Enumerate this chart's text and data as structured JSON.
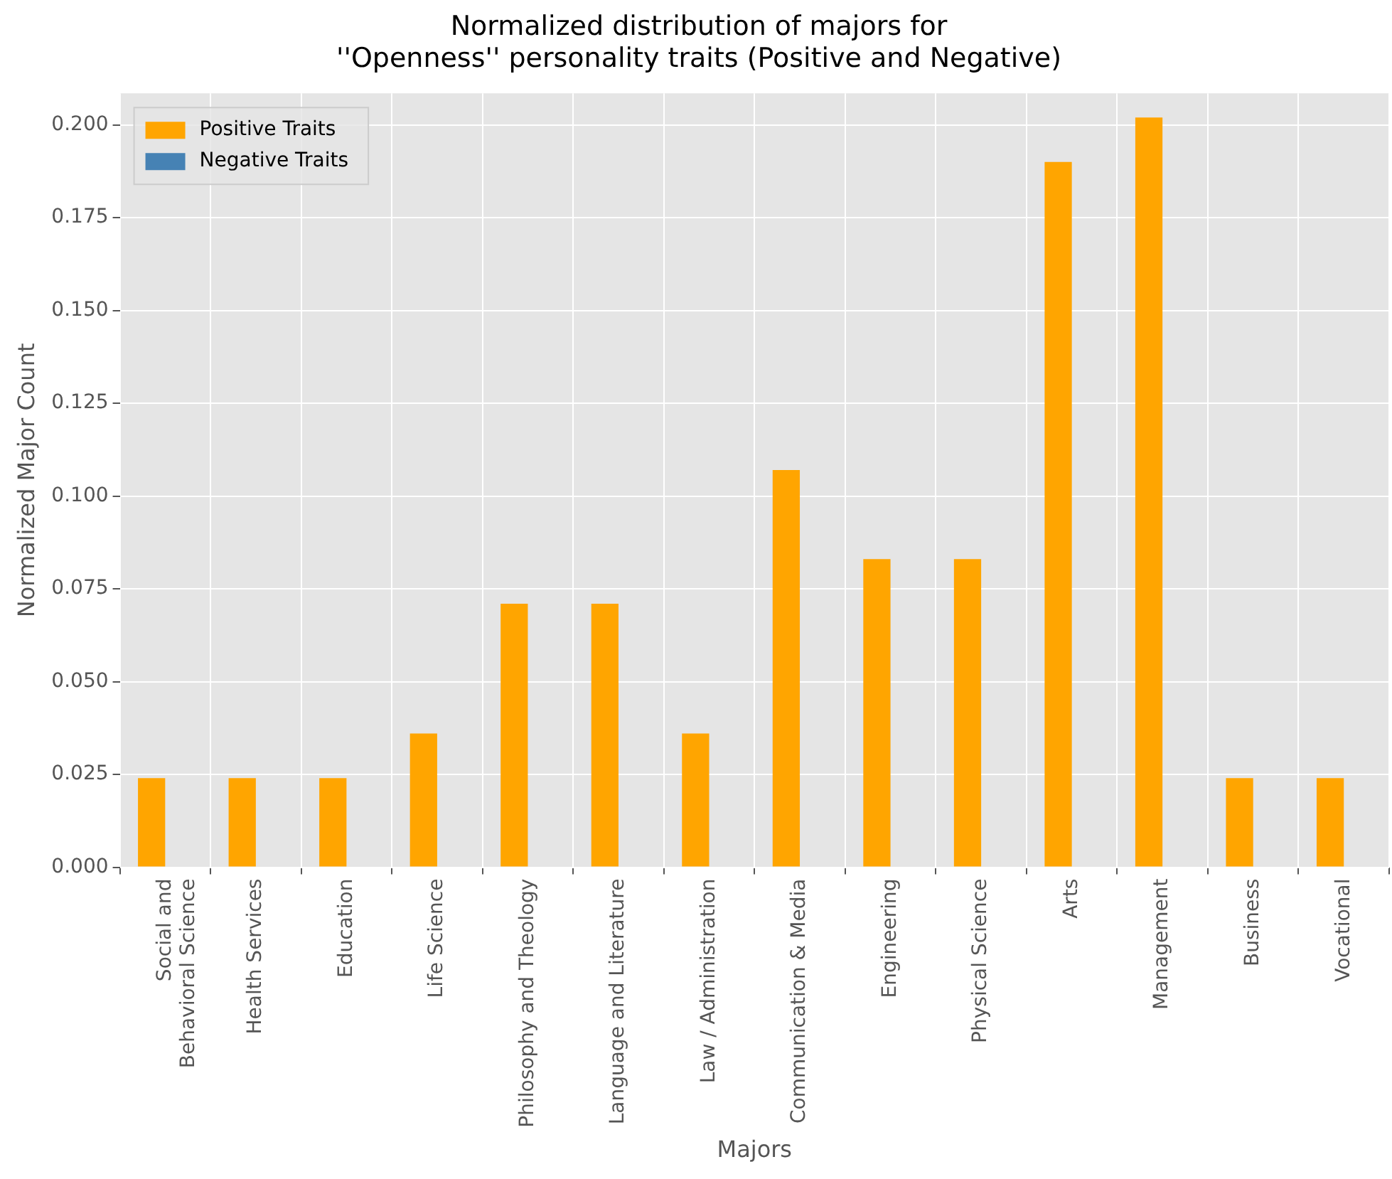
{
  "chart_data": {
    "type": "bar",
    "title": "Normalized distribution of majors for\n''Openness'' personality traits (Positive and Negative)",
    "xlabel": "Majors",
    "ylabel": "Normalized Major Count",
    "categories": [
      "Social and\nBehavioral Science",
      "Health Services",
      "Education",
      "Life Science",
      "Philosophy and Theology",
      "Language and Literature",
      "Law / Administration",
      "Communication & Media",
      "Engineering",
      "Physical Science",
      "Arts",
      "Management",
      "Business",
      "Vocational"
    ],
    "series": [
      {
        "name": "Positive Traits",
        "color": "#ffa500",
        "values": [
          0.024,
          0.024,
          0.024,
          0.036,
          0.071,
          0.071,
          0.036,
          0.107,
          0.083,
          0.083,
          0.19,
          0.202,
          0.024,
          0.024
        ]
      },
      {
        "name": "Negative Traits",
        "color": "#4682b4",
        "values": [
          0,
          0,
          0,
          0,
          0,
          0,
          0,
          0,
          0,
          0,
          0,
          0,
          0,
          0
        ]
      }
    ],
    "ylim": [
      0,
      0.2085
    ],
    "yticks": [
      {
        "value": 0,
        "label": "0.000"
      },
      {
        "value": 0.025,
        "label": "0.025"
      },
      {
        "value": 0.05,
        "label": "0.050"
      },
      {
        "value": 0.075,
        "label": "0.075"
      },
      {
        "value": 0.1,
        "label": "0.100"
      },
      {
        "value": 0.125,
        "label": "0.125"
      },
      {
        "value": 0.15,
        "label": "0.150"
      },
      {
        "value": 0.175,
        "label": "0.175"
      },
      {
        "value": 0.2,
        "label": "0.200"
      }
    ],
    "grid": true,
    "legend": "top left"
  }
}
